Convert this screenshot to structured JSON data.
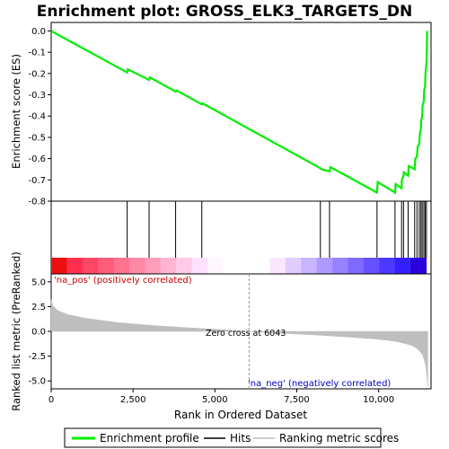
{
  "chart_data": {
    "type": "line",
    "title": "Enrichment plot: GROSS_ELK3_TARGETS_DN",
    "xlabel": "Rank in Ordered Dataset",
    "xlim": [
      0,
      11600
    ],
    "x_ticks": [
      0,
      2500,
      5000,
      7500,
      10000
    ],
    "x_tick_labels": [
      "0",
      "2,500",
      "5,000",
      "7,500",
      "10,000"
    ],
    "es_panel": {
      "ylabel": "Enrichment score (ES)",
      "ylim": [
        -0.8,
        0.04
      ],
      "y_ticks": [
        0.0,
        -0.1,
        -0.2,
        -0.3,
        -0.4,
        -0.5,
        -0.6,
        -0.7,
        -0.8
      ],
      "y_tick_labels": [
        "0.0",
        "-0.1",
        "-0.2",
        "-0.3",
        "-0.4",
        "-0.5",
        "-0.6",
        "-0.7",
        "-0.8"
      ],
      "series": [
        {
          "name": "Enrichment profile",
          "color": "#00ee00",
          "x": [
            0,
            2320,
            2340,
            2990,
            3010,
            3800,
            3830,
            4600,
            4620,
            8220,
            8250,
            8500,
            8530,
            9950,
            9970,
            10500,
            10520,
            10700,
            10710,
            10760,
            10770,
            10900,
            10920,
            11100,
            11120,
            11170,
            11190,
            11240,
            11260,
            11290,
            11300,
            11330,
            11340,
            11380,
            11390,
            11420,
            11430,
            11460,
            11470,
            11480
          ],
          "y": [
            0.0,
            -0.195,
            -0.18,
            -0.23,
            -0.218,
            -0.285,
            -0.28,
            -0.345,
            -0.34,
            -0.645,
            -0.65,
            -0.66,
            -0.64,
            -0.76,
            -0.71,
            -0.76,
            -0.72,
            -0.74,
            -0.7,
            -0.68,
            -0.665,
            -0.68,
            -0.635,
            -0.65,
            -0.6,
            -0.59,
            -0.545,
            -0.53,
            -0.48,
            -0.46,
            -0.42,
            -0.4,
            -0.35,
            -0.33,
            -0.28,
            -0.26,
            -0.2,
            -0.15,
            -0.1,
            0.0
          ]
        }
      ]
    },
    "hits": {
      "name": "Hits",
      "x": [
        2320,
        2990,
        3800,
        4600,
        8220,
        8500,
        9950,
        10500,
        10700,
        10760,
        10900,
        11100,
        11170,
        11240,
        11290,
        11330,
        11380,
        11420,
        11460
      ]
    },
    "ranked_metric_panel": {
      "ylabel": "Ranked list metric (PreRanked)",
      "ylim": [
        -5.8,
        5.8
      ],
      "y_ticks": [
        5.0,
        2.5,
        0.0,
        -2.5,
        -5.0
      ],
      "y_tick_labels": [
        "5.0",
        "2.5",
        "0.0",
        "-2.5",
        "-5.0"
      ],
      "series_name": "Ranking metric scores",
      "color": "#bebebe",
      "x": [
        0,
        50,
        200,
        500,
        1000,
        2000,
        3000,
        4000,
        5000,
        6043,
        7000,
        8000,
        9000,
        10000,
        10500,
        11000,
        11200,
        11350,
        11450,
        11500
      ],
      "y": [
        3.2,
        2.6,
        2.1,
        1.7,
        1.35,
        0.9,
        0.62,
        0.4,
        0.22,
        0.0,
        -0.18,
        -0.35,
        -0.55,
        -0.8,
        -1.0,
        -1.4,
        -1.8,
        -2.4,
        -3.6,
        -5.6
      ]
    },
    "annotations": {
      "positive": "'na_pos' (positively correlated)",
      "negative": "'na_neg' (negatively correlated)",
      "zero_cross": "Zero cross at 6043"
    },
    "legend": {
      "placement": "bottom",
      "entries": [
        "Enrichment profile",
        "Hits",
        "Ranking metric scores"
      ]
    }
  }
}
